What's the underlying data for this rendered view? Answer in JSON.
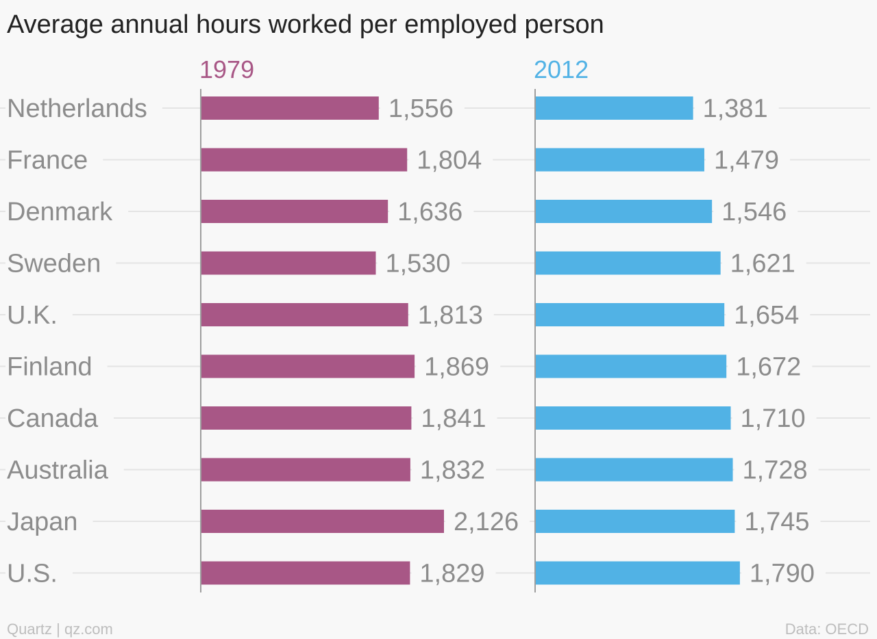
{
  "chart_data": {
    "type": "bar",
    "orientation": "horizontal",
    "title": "Average annual hours worked per employed person",
    "categories": [
      "Netherlands",
      "France",
      "Denmark",
      "Sweden",
      "U.K.",
      "Finland",
      "Canada",
      "Australia",
      "Japan",
      "U.S."
    ],
    "series": [
      {
        "name": "1979",
        "color": "#a85786",
        "values": [
          1556,
          1804,
          1636,
          1530,
          1813,
          1869,
          1841,
          1832,
          2126,
          1829
        ],
        "labels": [
          "1,556",
          "1,804",
          "1,636",
          "1,530",
          "1,813",
          "1,869",
          "1,841",
          "1,832",
          "2,126",
          "1,829"
        ]
      },
      {
        "name": "2012",
        "color": "#51b2e5",
        "values": [
          1381,
          1479,
          1546,
          1621,
          1654,
          1672,
          1710,
          1728,
          1745,
          1790
        ],
        "labels": [
          "1,381",
          "1,479",
          "1,546",
          "1,621",
          "1,654",
          "1,672",
          "1,710",
          "1,728",
          "1,745",
          "1,790"
        ]
      }
    ],
    "xlim": [
      0,
      2126
    ],
    "grid": true,
    "legend": "panel headers"
  },
  "footer": {
    "source_left": "Quartz | qz.com",
    "source_right": "Data: OECD"
  }
}
